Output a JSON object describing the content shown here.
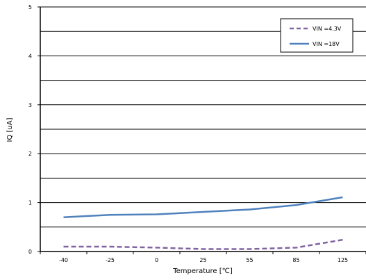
{
  "chart_data": {
    "type": "line",
    "title": "",
    "xlabel": "Temperature [℃]",
    "ylabel": "IQ [uA]",
    "categories": [
      "-40",
      "-25",
      "0",
      "25",
      "55",
      "85",
      "125"
    ],
    "ylim": [
      0,
      5
    ],
    "yticks": [
      "0",
      "1",
      "2",
      "3",
      "4",
      "5"
    ],
    "grid": true,
    "legend_position": "top-right",
    "series": [
      {
        "name": "VIN =4.3V",
        "values": [
          0.1,
          0.1,
          0.08,
          0.05,
          0.05,
          0.08,
          0.24
        ],
        "color": "#8064a2",
        "dash": "dashed"
      },
      {
        "name": "VIN =18V",
        "values": [
          0.7,
          0.75,
          0.76,
          0.81,
          0.86,
          0.95,
          1.11
        ],
        "color": "#4f81bd",
        "dash": "solid"
      }
    ]
  }
}
